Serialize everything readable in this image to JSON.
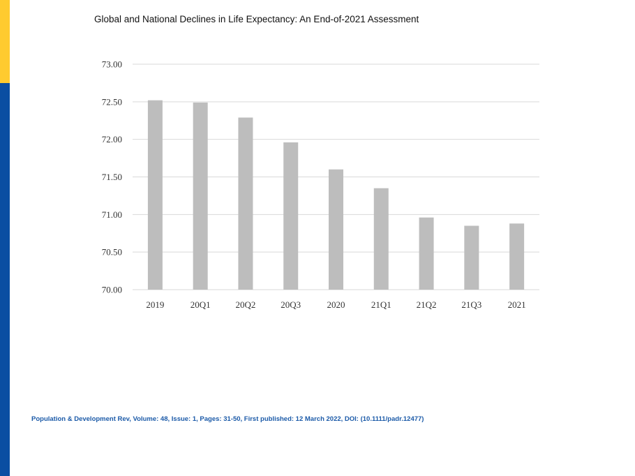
{
  "slide": {
    "title": "Global and National Declines in Life Expectancy: An End-of-2021 Assessment",
    "citation": "Population & Development Rev, Volume: 48, Issue: 1, Pages: 31-50, First published: 12 March 2022, DOI: (10.1111/padr.12477)",
    "colors": {
      "accent_yellow": "#FFCB2F",
      "accent_blue": "#0A4EA2",
      "bar": "#BDBDBD",
      "gridline": "#D9D9D9",
      "citation_text": "#1B5AA8"
    }
  },
  "chart_data": {
    "type": "bar",
    "title": "",
    "xlabel": "",
    "ylabel": "",
    "categories": [
      "2019",
      "20Q1",
      "20Q2",
      "20Q3",
      "2020",
      "21Q1",
      "21Q2",
      "21Q3",
      "2021"
    ],
    "values": [
      72.52,
      72.49,
      72.29,
      71.96,
      71.6,
      71.35,
      70.96,
      70.85,
      70.88
    ],
    "ylim": [
      70.0,
      73.0
    ],
    "yticks": [
      "70.00",
      "70.50",
      "71.00",
      "71.50",
      "72.00",
      "72.50",
      "73.00"
    ],
    "grid": true,
    "legend": "none"
  }
}
